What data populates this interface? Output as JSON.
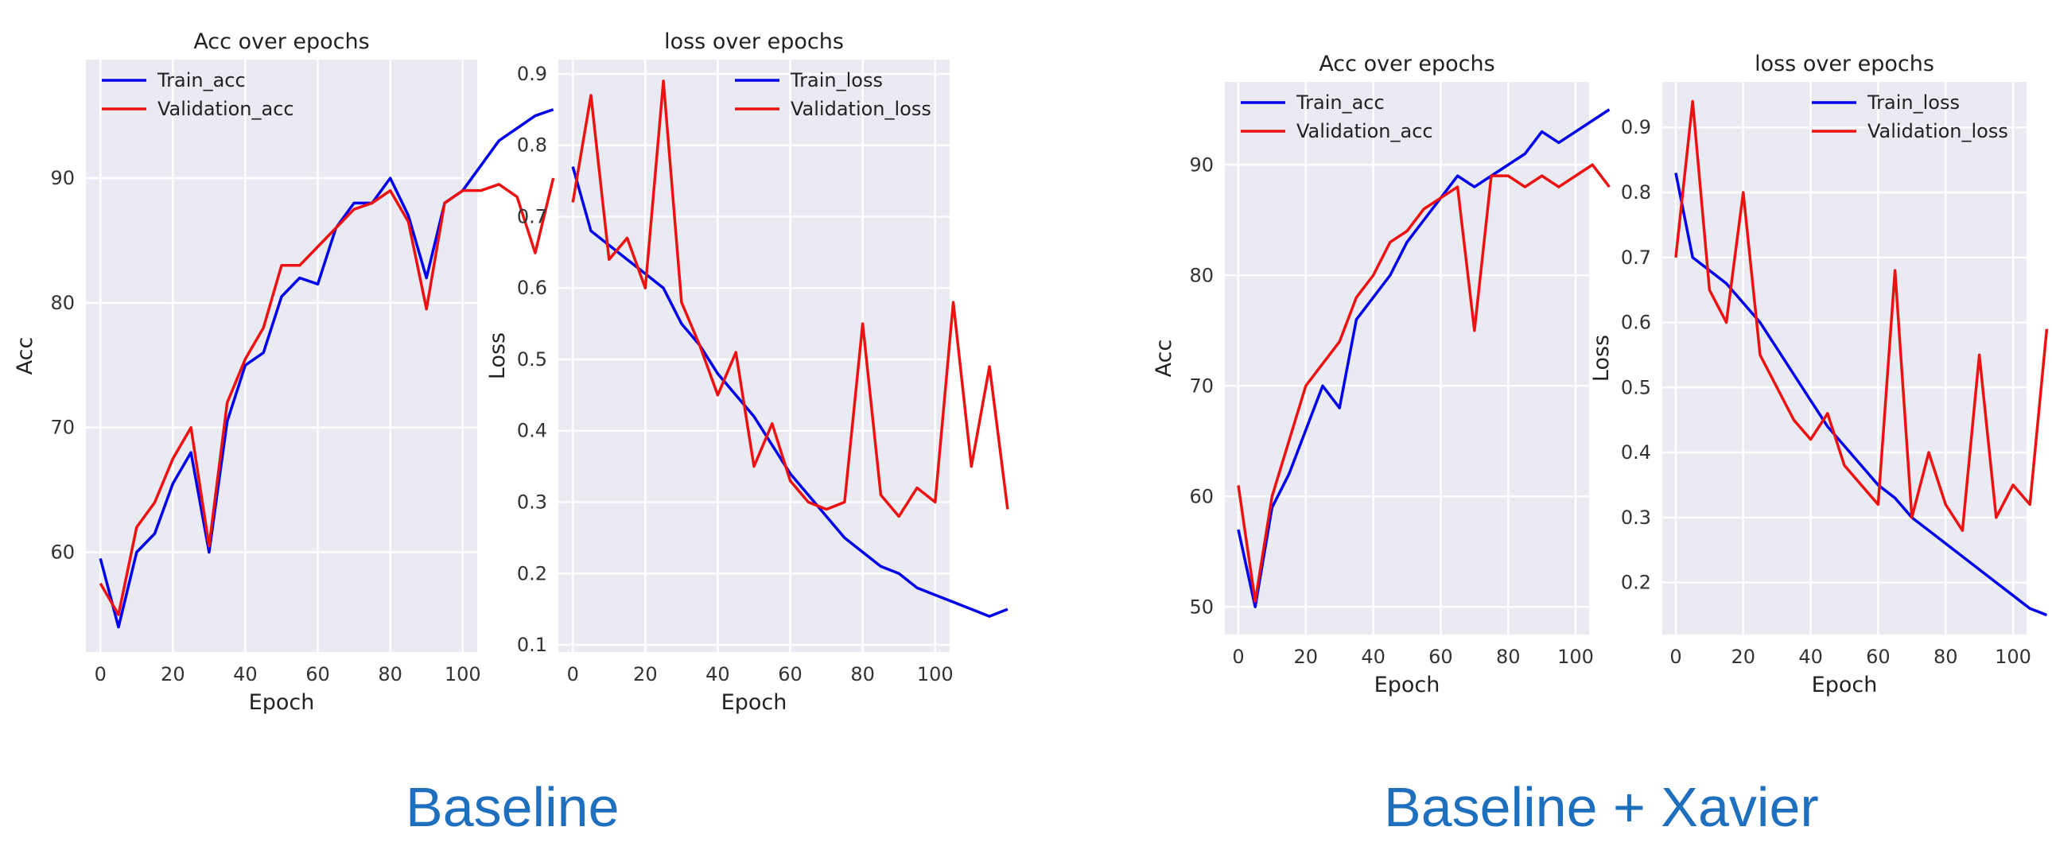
{
  "captions": {
    "left": "Baseline",
    "right": "Baseline + Xavier"
  },
  "colors": {
    "train": "#0000ee",
    "validation": "#ee1111",
    "plot_bg": "#eaeaf2",
    "grid": "#ffffff",
    "caption": "#1f6fbf"
  },
  "chart_data": [
    {
      "type": "line",
      "group": "Baseline",
      "title": "Acc over epochs",
      "xlabel": "Epoch",
      "ylabel": "Acc",
      "xlim": [
        -4,
        104
      ],
      "ylim": [
        52,
        99.5
      ],
      "xticks": [
        0,
        20,
        40,
        60,
        80,
        100
      ],
      "yticks": [
        60,
        70,
        80,
        90
      ],
      "grid": true,
      "legend": "top-left",
      "series": [
        {
          "name": "Train_acc",
          "color": "#0000ee",
          "x_step": 5,
          "values": [
            59.5,
            54,
            60,
            61.5,
            65.5,
            68,
            60,
            70.5,
            75,
            76,
            80.5,
            82,
            81.5,
            86,
            88,
            88,
            90,
            87,
            82,
            88,
            89,
            91,
            93,
            94,
            95,
            95.5
          ]
        },
        {
          "name": "Validation_acc",
          "color": "#ee1111",
          "x_step": 5,
          "values": [
            57.5,
            55,
            62,
            64,
            67.5,
            70,
            60.5,
            72,
            75.5,
            78,
            83,
            83,
            84.5,
            86,
            87.5,
            88,
            89,
            86.5,
            79.5,
            88,
            89,
            89,
            89.5,
            88.5,
            84,
            90
          ]
        }
      ]
    },
    {
      "type": "line",
      "group": "Baseline",
      "title": "loss over epochs",
      "xlabel": "Epoch",
      "ylabel": "Loss",
      "xlim": [
        -4,
        104
      ],
      "ylim": [
        0.09,
        0.92
      ],
      "xticks": [
        0,
        20,
        40,
        60,
        80,
        100
      ],
      "yticks": [
        0.1,
        0.2,
        0.3,
        0.4,
        0.5,
        0.6,
        0.7,
        0.8,
        0.9
      ],
      "grid": true,
      "legend": "top-right",
      "series": [
        {
          "name": "Train_loss",
          "color": "#0000ee",
          "x_step": 5,
          "values": [
            0.77,
            0.68,
            0.66,
            0.64,
            0.62,
            0.6,
            0.55,
            0.52,
            0.48,
            0.45,
            0.42,
            0.38,
            0.34,
            0.31,
            0.28,
            0.25,
            0.23,
            0.21,
            0.2,
            0.18,
            0.17,
            0.16,
            0.15,
            0.14,
            0.15
          ]
        },
        {
          "name": "Validation_loss",
          "color": "#ee1111",
          "x_step": 5,
          "values": [
            0.72,
            0.87,
            0.64,
            0.67,
            0.6,
            0.89,
            0.58,
            0.52,
            0.45,
            0.51,
            0.35,
            0.41,
            0.33,
            0.3,
            0.29,
            0.3,
            0.55,
            0.31,
            0.28,
            0.32,
            0.3,
            0.58,
            0.35,
            0.49,
            0.29
          ]
        }
      ]
    },
    {
      "type": "line",
      "group": "Baseline + Xavier",
      "title": "Acc over epochs",
      "xlabel": "Epoch",
      "ylabel": "Acc",
      "xlim": [
        -4,
        104
      ],
      "ylim": [
        47.5,
        97.5
      ],
      "xticks": [
        0,
        20,
        40,
        60,
        80,
        100
      ],
      "yticks": [
        50,
        60,
        70,
        80,
        90
      ],
      "grid": true,
      "legend": "top-left",
      "series": [
        {
          "name": "Train_acc",
          "color": "#0000ee",
          "x_step": 5,
          "values": [
            57,
            50,
            59,
            62,
            66,
            70,
            68,
            76,
            78,
            80,
            83,
            85,
            87,
            89,
            88,
            89,
            90,
            91,
            93,
            92,
            93,
            94,
            95
          ]
        },
        {
          "name": "Validation_acc",
          "color": "#ee1111",
          "x_step": 5,
          "values": [
            61,
            50.5,
            60,
            65,
            70,
            72,
            74,
            78,
            80,
            83,
            84,
            86,
            87,
            88,
            75,
            89,
            89,
            88,
            89,
            88,
            89,
            90,
            88
          ]
        }
      ]
    },
    {
      "type": "line",
      "group": "Baseline + Xavier",
      "title": "loss over epochs",
      "xlabel": "Epoch",
      "ylabel": "Loss",
      "xlim": [
        -4,
        104
      ],
      "ylim": [
        0.12,
        0.97
      ],
      "xticks": [
        0,
        20,
        40,
        60,
        80,
        100
      ],
      "yticks": [
        0.2,
        0.3,
        0.4,
        0.5,
        0.6,
        0.7,
        0.8,
        0.9
      ],
      "grid": true,
      "legend": "top-right",
      "series": [
        {
          "name": "Train_loss",
          "color": "#0000ee",
          "x_step": 5,
          "values": [
            0.83,
            0.7,
            0.68,
            0.66,
            0.63,
            0.6,
            0.56,
            0.52,
            0.48,
            0.44,
            0.41,
            0.38,
            0.35,
            0.33,
            0.3,
            0.28,
            0.26,
            0.24,
            0.22,
            0.2,
            0.18,
            0.16,
            0.15
          ]
        },
        {
          "name": "Validation_loss",
          "color": "#ee1111",
          "x_step": 5,
          "values": [
            0.7,
            0.94,
            0.65,
            0.6,
            0.8,
            0.55,
            0.5,
            0.45,
            0.42,
            0.46,
            0.38,
            0.35,
            0.32,
            0.68,
            0.3,
            0.4,
            0.32,
            0.28,
            0.55,
            0.3,
            0.35,
            0.32,
            0.59
          ]
        }
      ]
    }
  ]
}
